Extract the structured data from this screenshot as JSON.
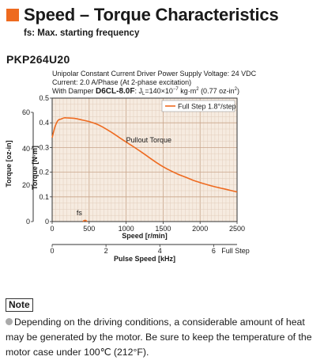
{
  "header": {
    "title": "Speed – Torque Characteristics",
    "subtitle": "fs: Max. starting frequency"
  },
  "model": "PKP264U20",
  "conditions": {
    "line1": "Unipolar Constant Current Driver  Power Supply Voltage: 24 VDC",
    "line2": "Current: 2.0 A/Phase (At 2-phase excitation)",
    "line3_prefix": "With Damper ",
    "line3_damper": "D6CL-8.0F",
    "line3_suffix": ": J",
    "line3_sub": "L",
    "line3_eq": "=140×10",
    "line3_exp": "−7",
    "line3_unit": " kg·m",
    "line3_exp2": "2",
    "line3_alt": " (0.77 oz-in",
    "line3_exp3": "2",
    "line3_close": ")"
  },
  "note": {
    "label": "Note",
    "text": "Depending on the driving conditions, a considerable amount of heat may be generated by the motor. Be sure to keep the temperature of the motor case under 100℃ (212°F)."
  },
  "chart_data": {
    "type": "line",
    "xlabel": "Speed [r/min]",
    "x2label": "Pulse Speed [kHz]",
    "ylabel": "Torque [N·m]",
    "y2label": "Torque [oz-in]",
    "xlim": [
      0,
      2500
    ],
    "ylim": [
      0,
      0.5
    ],
    "xticks": [
      0,
      500,
      1000,
      1500,
      2000,
      2500
    ],
    "xtick_labels": [
      "0",
      "500",
      "1000",
      "1500",
      "2000",
      "2500"
    ],
    "yticks": [
      0,
      0.1,
      0.2,
      0.3,
      0.4,
      0.5
    ],
    "ytick_labels": [
      "0",
      "0.1",
      "0.2",
      "0.3",
      "0.4",
      "0.5"
    ],
    "x2ticks": [
      0,
      2,
      4,
      6
    ],
    "x2tick_labels": [
      "0",
      "2",
      "4",
      "6"
    ],
    "x2_end_label": "Full Step",
    "y2ticks": [
      0,
      20,
      40,
      60
    ],
    "y2tick_labels": [
      "0",
      "20",
      "40",
      "60"
    ],
    "grid": true,
    "legend_position": "top-right",
    "series": [
      {
        "name": "Full Step 1.8°/step",
        "color": "#ee6a1f",
        "x": [
          0,
          40,
          80,
          120,
          160,
          200,
          300,
          400,
          500,
          600,
          700,
          800,
          900,
          1000,
          1100,
          1200,
          1300,
          1400,
          1500,
          1600,
          1700,
          1800,
          1900,
          2000,
          2100,
          2200,
          2300,
          2400,
          2500
        ],
        "y": [
          0.34,
          0.385,
          0.41,
          0.415,
          0.42,
          0.42,
          0.418,
          0.412,
          0.405,
          0.395,
          0.38,
          0.362,
          0.342,
          0.322,
          0.303,
          0.283,
          0.262,
          0.241,
          0.222,
          0.206,
          0.192,
          0.18,
          0.168,
          0.158,
          0.149,
          0.141,
          0.134,
          0.127,
          0.12
        ]
      }
    ],
    "annotations": [
      {
        "text": "Pullout Torque",
        "x": 1000,
        "y": 0.32
      },
      {
        "text": "fs",
        "x": 330,
        "y": 0.025
      }
    ],
    "fs_curve": {
      "x": [
        415,
        445,
        470
      ],
      "y": [
        0.0,
        0.01,
        0.0
      ]
    }
  }
}
